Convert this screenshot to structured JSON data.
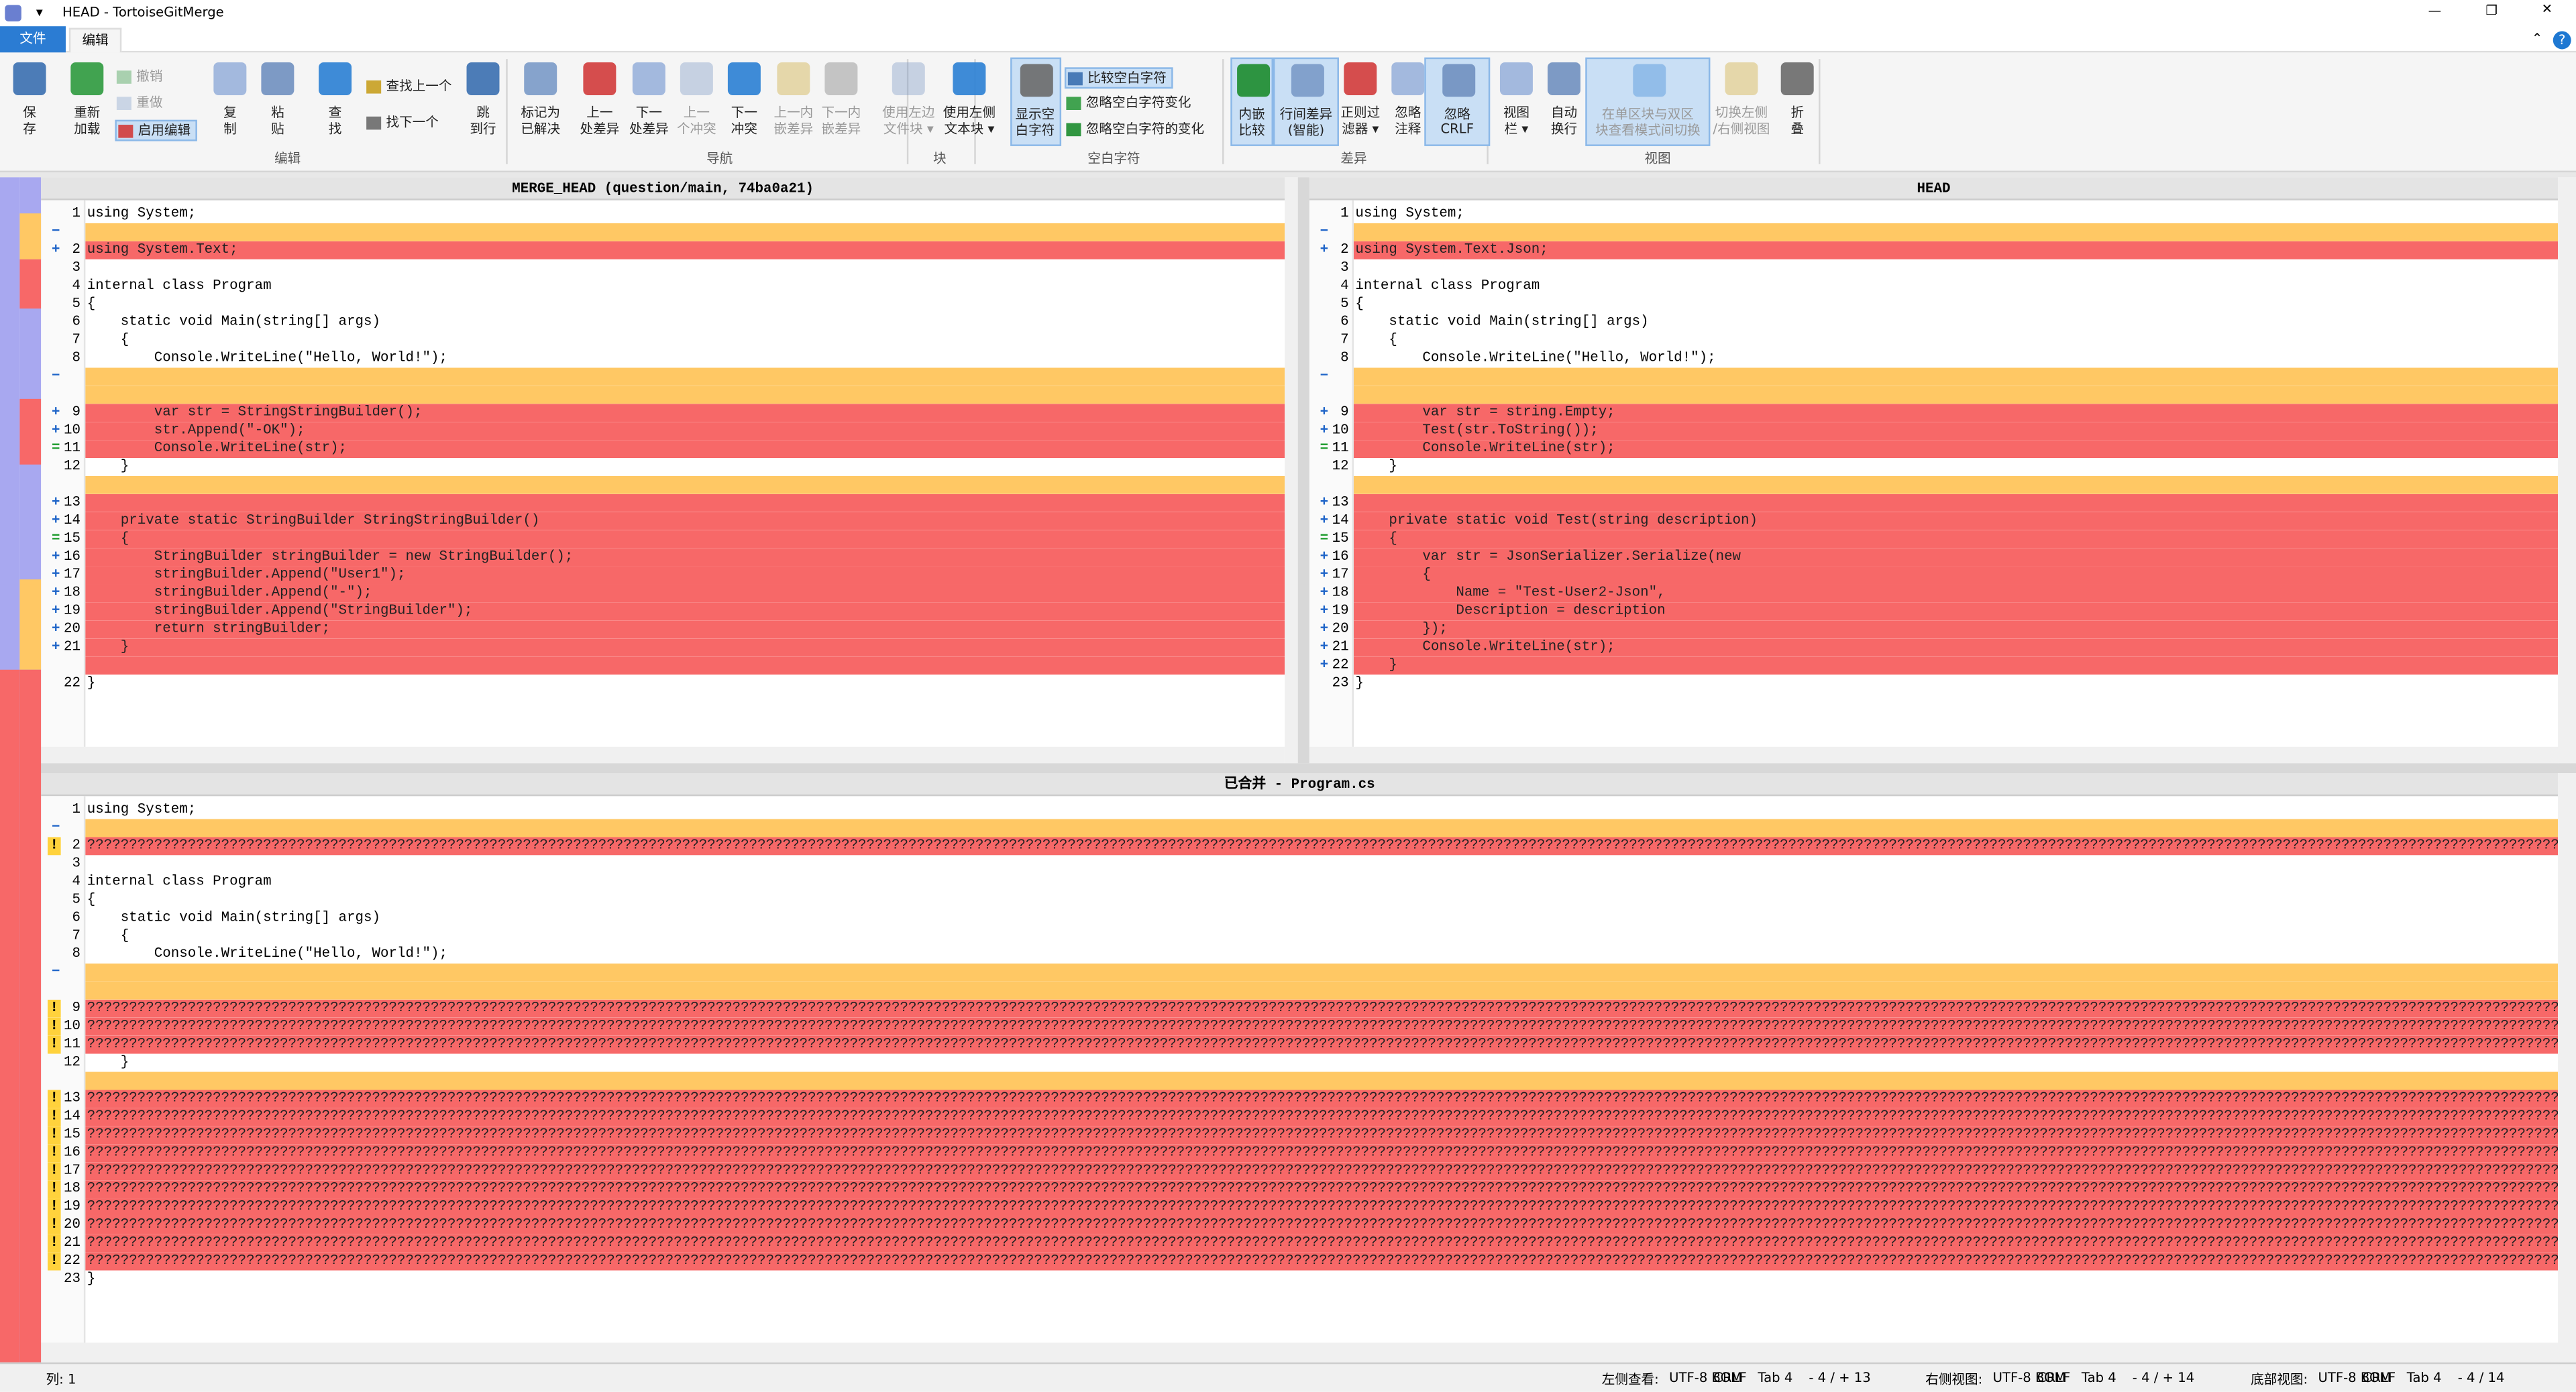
{
  "window": {
    "title": "HEAD - TortoiseGitMerge"
  },
  "menu": [
    "文件",
    "编辑"
  ],
  "ribbon": {
    "groups": [
      {
        "label": "编辑",
        "buttons": [
          {
            "label": [
              "保",
              "存"
            ]
          },
          {
            "label": [
              "重新",
              "加载"
            ]
          },
          {
            "label": [
              "撤销"
            ],
            "disabled": true
          },
          {
            "label": [
              "重做"
            ],
            "disabled": true
          },
          {
            "label": [
              "启用编辑"
            ],
            "on": true
          },
          {
            "label": [
              "复",
              "制"
            ]
          },
          {
            "label": [
              "粘",
              "贴"
            ]
          },
          {
            "label": [
              "查",
              "找"
            ]
          },
          {
            "label": [
              "查找上一个"
            ]
          },
          {
            "label": [
              "找下一个"
            ]
          },
          {
            "label": [
              "跳",
              "到行"
            ]
          }
        ]
      },
      {
        "label": "导航",
        "buttons": [
          {
            "label": [
              "标记为",
              "已解决"
            ]
          },
          {
            "label": [
              "上一",
              "处差异"
            ]
          },
          {
            "label": [
              "下一",
              "处差异"
            ]
          },
          {
            "label": [
              "上一",
              "个冲突"
            ],
            "disabled": true
          },
          {
            "label": [
              "下一",
              "冲突"
            ]
          },
          {
            "label": [
              "上一内",
              "嵌差异"
            ],
            "disabled": true
          },
          {
            "label": [
              "下一内",
              "嵌差异"
            ],
            "disabled": true
          }
        ]
      },
      {
        "label": "块",
        "buttons": [
          {
            "label": [
              "使用左边",
              "文件块 ▾"
            ],
            "disabled": true
          },
          {
            "label": [
              "使用左侧",
              "文本块 ▾"
            ]
          }
        ]
      },
      {
        "label": "空白字符",
        "buttons": [
          {
            "label": [
              "显示空",
              "白字符"
            ],
            "on": true
          },
          {
            "label": [
              "比较空白字符"
            ],
            "on": true
          },
          {
            "label": [
              "忽略空白字符变化"
            ]
          },
          {
            "label": [
              "忽略空白字符的变化"
            ]
          }
        ]
      },
      {
        "label": "差异",
        "buttons": [
          {
            "label": [
              "内嵌",
              "比较"
            ],
            "on": true
          },
          {
            "label": [
              "行间差异",
              "(智能)"
            ],
            "on": true
          },
          {
            "label": [
              "正则过",
              "滤器 ▾"
            ]
          },
          {
            "label": [
              "忽略",
              "注释"
            ]
          },
          {
            "label": [
              "忽略",
              "CRLF"
            ],
            "on": true
          }
        ]
      },
      {
        "label": "视图",
        "buttons": [
          {
            "label": [
              "视图",
              "栏 ▾"
            ]
          },
          {
            "label": [
              "自动",
              "换行"
            ]
          },
          {
            "label": [
              "在单区块与双区",
              "块查看模式间切换"
            ],
            "on": true,
            "disabled": true
          },
          {
            "label": [
              "切换左侧",
              "/右侧视图"
            ],
            "disabled": true
          },
          {
            "label": [
              "折",
              "叠"
            ]
          }
        ]
      }
    ]
  },
  "panes": [
    {
      "header": "MERGE_HEAD (question/main, 74ba0a21)",
      "lines": [
        {
          "n": 1,
          "t": "using System;"
        },
        {
          "m": "−",
          "s": "orange"
        },
        {
          "n": 2,
          "m": "+",
          "t": "using System.Text;",
          "s": "red"
        },
        {
          "n": 3
        },
        {
          "n": 4,
          "t": "internal class Program"
        },
        {
          "n": 5,
          "t": "{"
        },
        {
          "n": 6,
          "t": "    static void Main(string[] args)"
        },
        {
          "n": 7,
          "t": "    {"
        },
        {
          "n": 8,
          "t": "        Console.WriteLine(\"Hello, World!\");"
        },
        {
          "m": "−",
          "s": "orange"
        },
        {
          "s": "orange"
        },
        {
          "n": 9,
          "m": "+",
          "t": "        var str = StringStringBuilder();",
          "s": "red"
        },
        {
          "n": 10,
          "m": "+",
          "t": "        str.Append(\"-OK\");",
          "s": "red"
        },
        {
          "n": 11,
          "m": "=",
          "t": "        Console.WriteLine(str);",
          "s": "red"
        },
        {
          "n": 12,
          "t": "    }"
        },
        {
          "s": "orange"
        },
        {
          "n": 13,
          "m": "+",
          "s": "red"
        },
        {
          "n": 14,
          "m": "+",
          "t": "    private static StringBuilder StringStringBuilder()",
          "s": "red"
        },
        {
          "n": 15,
          "m": "=",
          "t": "    {",
          "s": "red"
        },
        {
          "n": 16,
          "m": "+",
          "t": "        StringBuilder stringBuilder = new StringBuilder();",
          "s": "red"
        },
        {
          "n": 17,
          "m": "+",
          "t": "        stringBuilder.Append(\"User1\");",
          "s": "red"
        },
        {
          "n": 18,
          "m": "+",
          "t": "        stringBuilder.Append(\"-\");",
          "s": "red"
        },
        {
          "n": 19,
          "m": "+",
          "t": "        stringBuilder.Append(\"StringBuilder\");",
          "s": "red"
        },
        {
          "n": 20,
          "m": "+",
          "t": "        return stringBuilder;",
          "s": "red"
        },
        {
          "n": 21,
          "m": "+",
          "t": "    }",
          "s": "red"
        },
        {
          "s": "red"
        },
        {
          "n": 22,
          "t": "}"
        }
      ]
    },
    {
      "header": "HEAD",
      "lines": [
        {
          "n": 1,
          "t": "using System;"
        },
        {
          "m": "−",
          "s": "orange"
        },
        {
          "n": 2,
          "m": "+",
          "t": "using System.Text.Json;",
          "s": "red"
        },
        {
          "n": 3
        },
        {
          "n": 4,
          "t": "internal class Program"
        },
        {
          "n": 5,
          "t": "{"
        },
        {
          "n": 6,
          "t": "    static void Main(string[] args)"
        },
        {
          "n": 7,
          "t": "    {"
        },
        {
          "n": 8,
          "t": "        Console.WriteLine(\"Hello, World!\");"
        },
        {
          "m": "−",
          "s": "orange"
        },
        {
          "s": "orange"
        },
        {
          "n": 9,
          "m": "+",
          "t": "        var str = string.Empty;",
          "s": "red"
        },
        {
          "n": 10,
          "m": "+",
          "t": "        Test(str.ToString());",
          "s": "red"
        },
        {
          "n": 11,
          "m": "=",
          "t": "        Console.WriteLine(str);",
          "s": "red"
        },
        {
          "n": 12,
          "t": "    }"
        },
        {
          "s": "orange"
        },
        {
          "n": 13,
          "m": "+",
          "s": "red"
        },
        {
          "n": 14,
          "m": "+",
          "t": "    private static void Test(string description)",
          "s": "red"
        },
        {
          "n": 15,
          "m": "=",
          "t": "    {",
          "s": "red"
        },
        {
          "n": 16,
          "m": "+",
          "t": "        var str = JsonSerializer.Serialize(new",
          "s": "red"
        },
        {
          "n": 17,
          "m": "+",
          "t": "        {",
          "s": "red"
        },
        {
          "n": 18,
          "m": "+",
          "t": "            Name = \"Test-User2-Json\",",
          "s": "red"
        },
        {
          "n": 19,
          "m": "+",
          "t": "            Description = description",
          "s": "red"
        },
        {
          "n": 20,
          "m": "+",
          "t": "        });",
          "s": "red"
        },
        {
          "n": 21,
          "m": "+",
          "t": "        Console.WriteLine(str);",
          "s": "red"
        },
        {
          "n": 22,
          "m": "+",
          "t": "    }",
          "s": "red"
        },
        {
          "n": 23,
          "t": "}"
        }
      ]
    },
    {
      "header": "已合并 - Program.cs",
      "lines": [
        {
          "n": 1,
          "t": "using System;"
        },
        {
          "m": "−",
          "s": "orange"
        },
        {
          "n": 2,
          "m": "!",
          "t": "????????????????????????????????????????????????????????????????????????????????????????????????????????????????????????????????????????????????????????????????????????????????????????????????????????????????????????????????????????????????????????????????????????????????????????????????????????",
          "s": "red"
        },
        {
          "n": 3
        },
        {
          "n": 4,
          "t": "internal class Program"
        },
        {
          "n": 5,
          "t": "{"
        },
        {
          "n": 6,
          "t": "    static void Main(string[] args)"
        },
        {
          "n": 7,
          "t": "    {"
        },
        {
          "n": 8,
          "t": "        Console.WriteLine(\"Hello, World!\");"
        },
        {
          "m": "−",
          "s": "orange"
        },
        {
          "s": "orange"
        },
        {
          "n": 9,
          "m": "!",
          "t": "????????????????????????????????????????????????????????????????????????????????????????????????????????????????????????????????????????????????????????????????????????????????????????????????????????????????????????????????????????????????????????????????????????????????????????????????????????",
          "s": "red"
        },
        {
          "n": 10,
          "m": "!",
          "t": "????????????????????????????????????????????????????????????????????????????????????????????????????????????????????????????????????????????????????????????????????????????????????????????????????????????????????????????????????????????????????????????????????????????????????????????????????????",
          "s": "red"
        },
        {
          "n": 11,
          "m": "!",
          "t": "????????????????????????????????????????????????????????????????????????????????????????????????????????????????????????????????????????????????????????????????????????????????????????????????????????????????????????????????????????????????????????????????????????????????????????????????????????",
          "s": "red"
        },
        {
          "n": 12,
          "t": "    }"
        },
        {
          "s": "orange"
        },
        {
          "n": 13,
          "m": "!",
          "t": "????????????????????????????????????????????????????????????????????????????????????????????????????????????????????????????????????????????????????????????????????????????????????????????????????????????????????????????????????????????????????????????????????????????????????????????????????????",
          "s": "red"
        },
        {
          "n": 14,
          "m": "!",
          "t": "????????????????????????????????????????????????????????????????????????????????????????????????????????????????????????????????????????????????????????????????????????????????????????????????????????????????????????????????????????????????????????????????????????????????????????????????????????",
          "s": "red"
        },
        {
          "n": 15,
          "m": "!",
          "t": "????????????????????????????????????????????????????????????????????????????????????????????????????????????????????????????????????????????????????????????????????????????????????????????????????????????????????????????????????????????????????????????????????????????????????????????????????????",
          "s": "red"
        },
        {
          "n": 16,
          "m": "!",
          "t": "????????????????????????????????????????????????????????????????????????????????????????????????????????????????????????????????????????????????????????????????????????????????????????????????????????????????????????????????????????????????????????????????????????????????????????????????????????",
          "s": "red"
        },
        {
          "n": 17,
          "m": "!",
          "t": "????????????????????????????????????????????????????????????????????????????????????????????????????????????????????????????????????????????????????????????????????????????????????????????????????????????????????????????????????????????????????????????????????????????????????????????????????????",
          "s": "red"
        },
        {
          "n": 18,
          "m": "!",
          "t": "????????????????????????????????????????????????????????????????????????????????????????????????????????????????????????????????????????????????????????????????????????????????????????????????????????????????????????????????????????????????????????????????????????????????????????????????????????",
          "s": "red"
        },
        {
          "n": 19,
          "m": "!",
          "t": "????????????????????????????????????????????????????????????????????????????????????????????????????????????????????????????????????????????????????????????????????????????????????????????????????????????????????????????????????????????????????????????????????????????????????????????????????????",
          "s": "red"
        },
        {
          "n": 20,
          "m": "!",
          "t": "????????????????????????????????????????????????????????????????????????????????????????????????????????????????????????????????????????????????????????????????????????????????????????????????????????????????????????????????????????????????????????????????????????????????????????????????????????",
          "s": "red"
        },
        {
          "n": 21,
          "m": "!",
          "t": "????????????????????????????????????????????????????????????????????????????????????????????????????????????????????????????????????????????????????????????????????????????????????????????????????????????????????????????????????????????????????????????????????????????????????????????????????????",
          "s": "red"
        },
        {
          "n": 22,
          "m": "!",
          "t": "????????????????????????????????????????????????????????????????????????????????????????????????????????????????????????????????????????????????????????????????????????????????????????????????????????????????????????????????????????????????????????????????????????????????????????????????????????",
          "s": "red"
        },
        {
          "n": 23,
          "t": "}"
        }
      ]
    }
  ],
  "status": {
    "column": "列: 1",
    "sections": [
      {
        "label": "左侧查看:",
        "encoding": "UTF-8 BOM",
        "eol": "CRLF",
        "tab": "Tab 4",
        "diff": "- 4 / + 13"
      },
      {
        "label": "右侧视图:",
        "encoding": "UTF-8 BOM",
        "eol": "CRLF",
        "tab": "Tab 4",
        "diff": "- 4 / + 14"
      },
      {
        "label": "底部视图:",
        "encoding": "UTF-8 BOM",
        "eol": "CRLF",
        "tab": "Tab 4",
        "diff": "- 4 / 14"
      }
    ]
  }
}
